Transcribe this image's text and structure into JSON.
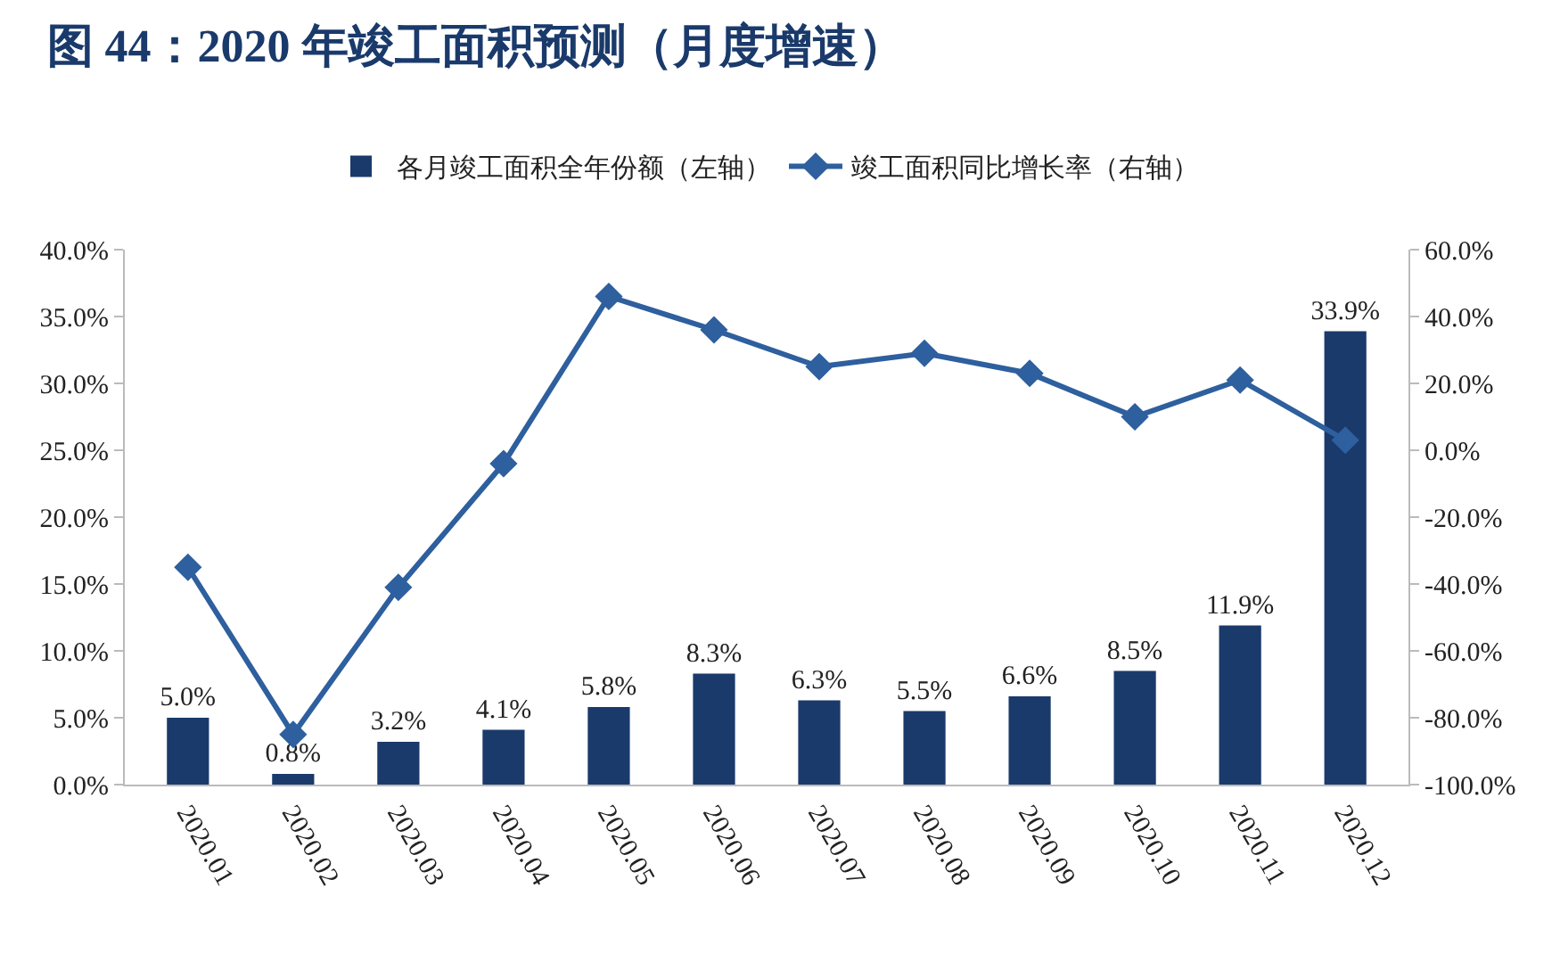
{
  "chart_data": {
    "type": "bar",
    "title": "图 44：2020 年竣工面积预测（月度增速）",
    "categories": [
      "2020.01",
      "2020.02",
      "2020.03",
      "2020.04",
      "2020.05",
      "2020.06",
      "2020.07",
      "2020.08",
      "2020.09",
      "2020.10",
      "2020.11",
      "2020.12"
    ],
    "series": [
      {
        "name": "各月竣工面积全年份额（左轴）",
        "color": "#1a3a6b",
        "values": [
          5.0,
          0.8,
          3.2,
          4.1,
          5.8,
          8.3,
          6.3,
          5.5,
          6.6,
          8.5,
          11.9,
          33.9
        ],
        "value_labels": [
          "5.0%",
          "0.8%",
          "3.2%",
          "4.1%",
          "5.8%",
          "8.3%",
          "6.3%",
          "5.5%",
          "6.6%",
          "8.5%",
          "11.9%",
          "33.9%"
        ]
      },
      {
        "name": "竣工面积同比增长率（右轴）",
        "type": "line",
        "axis": "y2",
        "color": "#2e5f9e",
        "marker": "diamond",
        "line_style": "solid",
        "values": [
          -35,
          -85,
          -41,
          -4,
          46,
          36,
          25,
          29,
          23,
          10,
          21,
          3
        ]
      }
    ],
    "ylim": [
      0,
      40
    ],
    "yticks": [
      {
        "value": 0,
        "label": "0.0%"
      },
      {
        "value": 5,
        "label": "5.0%"
      },
      {
        "value": 10,
        "label": "10.0%"
      },
      {
        "value": 15,
        "label": "15.0%"
      },
      {
        "value": 20,
        "label": "20.0%"
      },
      {
        "value": 25,
        "label": "25.0%"
      },
      {
        "value": 30,
        "label": "30.0%"
      },
      {
        "value": 35,
        "label": "35.0%"
      },
      {
        "value": 40,
        "label": "40.0%"
      }
    ],
    "y2lim": [
      -100,
      60
    ],
    "y2ticks": [
      {
        "value": -100,
        "label": "-100.0%"
      },
      {
        "value": -80,
        "label": "-80.0%"
      },
      {
        "value": -60,
        "label": "-60.0%"
      },
      {
        "value": -40,
        "label": "-40.0%"
      },
      {
        "value": -20,
        "label": "-20.0%"
      },
      {
        "value": 0,
        "label": "0.0%"
      },
      {
        "value": 20,
        "label": "20.0%"
      },
      {
        "value": 40,
        "label": "40.0%"
      },
      {
        "value": 60,
        "label": "60.0%"
      }
    ],
    "grid": false,
    "legend": "top"
  }
}
